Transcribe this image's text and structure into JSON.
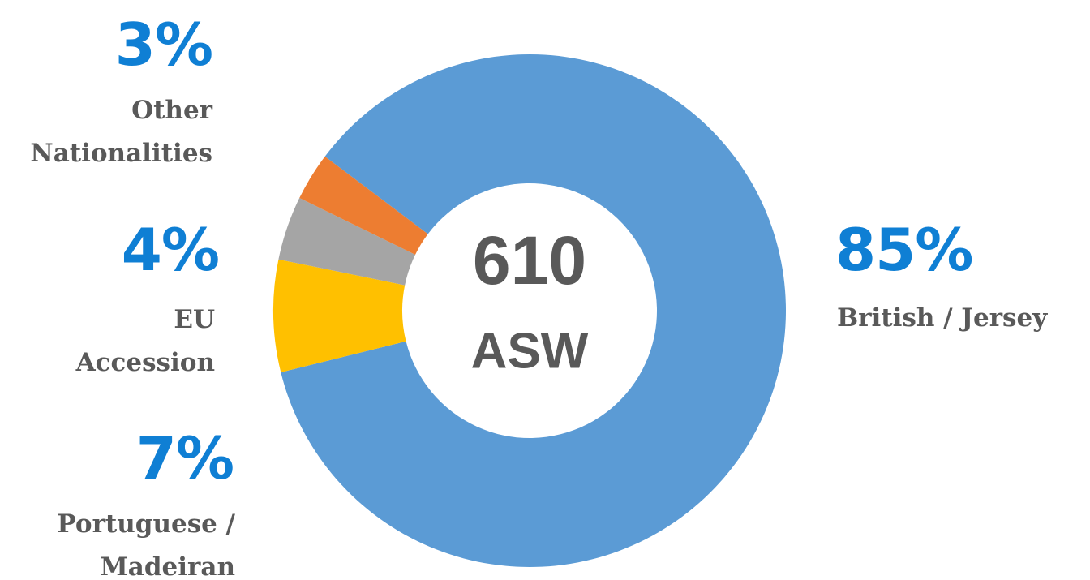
{
  "chart_data": {
    "type": "donut",
    "center_label": "610",
    "center_sublabel": "ASW",
    "categories": [
      "British / Jersey",
      "Portuguese / Madeiran",
      "EU Accession",
      "Other Nationalities"
    ],
    "values": [
      85,
      7,
      4,
      3
    ],
    "value_labels": [
      "85%",
      "7%",
      "4%",
      "3%"
    ],
    "colors": [
      "#5b9bd5",
      "#ffc000",
      "#a5a5a5",
      "#ed7d31"
    ]
  }
}
